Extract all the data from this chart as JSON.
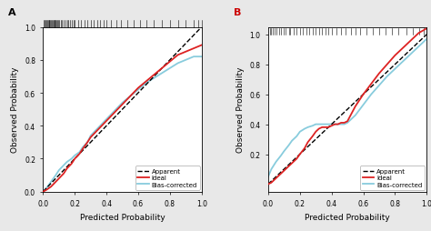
{
  "panel_A": {
    "label": "A",
    "label_color": "black",
    "apparent_x": [
      0.0,
      0.05,
      0.1,
      0.15,
      0.2,
      0.25,
      0.3,
      0.35,
      0.4,
      0.45,
      0.5,
      0.55,
      0.6,
      0.65,
      0.7,
      0.75,
      0.8,
      0.85,
      0.9,
      0.95,
      1.0
    ],
    "apparent_y": [
      0.0,
      0.05,
      0.1,
      0.15,
      0.2,
      0.25,
      0.3,
      0.35,
      0.4,
      0.45,
      0.5,
      0.55,
      0.6,
      0.65,
      0.7,
      0.75,
      0.8,
      0.85,
      0.9,
      0.95,
      1.0
    ],
    "ideal_x": [
      0.0,
      0.02,
      0.05,
      0.08,
      0.1,
      0.13,
      0.15,
      0.18,
      0.2,
      0.23,
      0.25,
      0.28,
      0.3,
      0.35,
      0.4,
      0.45,
      0.5,
      0.55,
      0.6,
      0.65,
      0.7,
      0.75,
      0.8,
      0.85,
      0.9,
      0.95,
      1.0
    ],
    "ideal_y": [
      0.0,
      0.01,
      0.03,
      0.06,
      0.08,
      0.11,
      0.14,
      0.17,
      0.2,
      0.23,
      0.26,
      0.3,
      0.33,
      0.38,
      0.43,
      0.48,
      0.53,
      0.58,
      0.63,
      0.67,
      0.71,
      0.75,
      0.79,
      0.83,
      0.85,
      0.87,
      0.89
    ],
    "bias_x": [
      0.0,
      0.02,
      0.05,
      0.08,
      0.1,
      0.13,
      0.15,
      0.18,
      0.2,
      0.23,
      0.25,
      0.28,
      0.3,
      0.35,
      0.4,
      0.45,
      0.5,
      0.55,
      0.6,
      0.65,
      0.7,
      0.75,
      0.8,
      0.85,
      0.9,
      0.95,
      1.0
    ],
    "bias_y": [
      0.0,
      0.02,
      0.06,
      0.1,
      0.13,
      0.16,
      0.18,
      0.2,
      0.22,
      0.24,
      0.27,
      0.3,
      0.34,
      0.39,
      0.44,
      0.49,
      0.54,
      0.58,
      0.62,
      0.66,
      0.69,
      0.72,
      0.75,
      0.78,
      0.8,
      0.82,
      0.82
    ],
    "rug_x": [
      0.005,
      0.01,
      0.015,
      0.02,
      0.025,
      0.03,
      0.035,
      0.04,
      0.045,
      0.05,
      0.055,
      0.06,
      0.065,
      0.07,
      0.075,
      0.08,
      0.085,
      0.09,
      0.095,
      0.1,
      0.11,
      0.12,
      0.13,
      0.14,
      0.15,
      0.16,
      0.17,
      0.18,
      0.19,
      0.2,
      0.22,
      0.24,
      0.26,
      0.28,
      0.3,
      0.32,
      0.34,
      0.36,
      0.38,
      0.4,
      0.43,
      0.46,
      0.49,
      0.53,
      0.57,
      0.61,
      0.65,
      0.7,
      0.75,
      0.8,
      0.85,
      0.9,
      0.95,
      0.98,
      1.0
    ]
  },
  "panel_B": {
    "label": "B",
    "label_color": "#cc0000",
    "apparent_x": [
      0.0,
      0.05,
      0.1,
      0.15,
      0.2,
      0.25,
      0.3,
      0.35,
      0.4,
      0.45,
      0.5,
      0.55,
      0.6,
      0.65,
      0.7,
      0.75,
      0.8,
      0.85,
      0.9,
      0.95,
      1.0
    ],
    "apparent_y": [
      0.0,
      0.05,
      0.1,
      0.15,
      0.2,
      0.25,
      0.3,
      0.35,
      0.4,
      0.45,
      0.5,
      0.55,
      0.6,
      0.65,
      0.7,
      0.75,
      0.8,
      0.85,
      0.9,
      0.95,
      1.0
    ],
    "ideal_x": [
      0.0,
      0.02,
      0.05,
      0.08,
      0.1,
      0.13,
      0.15,
      0.18,
      0.2,
      0.23,
      0.25,
      0.28,
      0.3,
      0.32,
      0.34,
      0.36,
      0.38,
      0.4,
      0.42,
      0.44,
      0.46,
      0.48,
      0.5,
      0.55,
      0.6,
      0.65,
      0.7,
      0.75,
      0.8,
      0.85,
      0.9,
      0.95,
      1.0
    ],
    "ideal_y": [
      0.0,
      0.01,
      0.04,
      0.07,
      0.09,
      0.12,
      0.14,
      0.17,
      0.2,
      0.24,
      0.28,
      0.32,
      0.35,
      0.37,
      0.38,
      0.38,
      0.38,
      0.39,
      0.4,
      0.4,
      0.41,
      0.41,
      0.42,
      0.52,
      0.6,
      0.67,
      0.74,
      0.8,
      0.86,
      0.91,
      0.96,
      1.01,
      1.04
    ],
    "bias_x": [
      0.0,
      0.02,
      0.05,
      0.08,
      0.1,
      0.13,
      0.15,
      0.18,
      0.2,
      0.23,
      0.25,
      0.28,
      0.3,
      0.32,
      0.34,
      0.36,
      0.38,
      0.4,
      0.42,
      0.44,
      0.46,
      0.48,
      0.5,
      0.55,
      0.6,
      0.65,
      0.7,
      0.75,
      0.8,
      0.85,
      0.9,
      0.95,
      1.0
    ],
    "bias_y": [
      0.05,
      0.1,
      0.15,
      0.19,
      0.22,
      0.26,
      0.29,
      0.32,
      0.35,
      0.37,
      0.38,
      0.39,
      0.4,
      0.4,
      0.4,
      0.4,
      0.4,
      0.4,
      0.4,
      0.4,
      0.4,
      0.4,
      0.41,
      0.46,
      0.53,
      0.6,
      0.66,
      0.72,
      0.77,
      0.82,
      0.87,
      0.92,
      0.97
    ],
    "rug_x": [
      0.01,
      0.02,
      0.03,
      0.04,
      0.05,
      0.07,
      0.08,
      0.1,
      0.11,
      0.13,
      0.14,
      0.16,
      0.18,
      0.2,
      0.22,
      0.24,
      0.26,
      0.28,
      0.3,
      0.32,
      0.34,
      0.36,
      0.38,
      0.4,
      0.43,
      0.46,
      0.49,
      0.52,
      0.55,
      0.58,
      0.62,
      0.66,
      0.7,
      0.74,
      0.78,
      0.82,
      0.87,
      0.91,
      0.95,
      0.98,
      1.0
    ]
  },
  "panel_A_ylim": [
    0.0,
    1.0
  ],
  "panel_B_ylim": [
    -0.05,
    1.05
  ],
  "apparent_color": "black",
  "ideal_color": "#dd2222",
  "bias_color": "#88ccdd",
  "apparent_lw": 1.0,
  "ideal_lw": 1.3,
  "bias_lw": 1.3,
  "xlabel": "Predicted Probability",
  "ylabel": "Observed Probability",
  "xlim": [
    0.0,
    1.0
  ],
  "xticks": [
    0.0,
    0.2,
    0.4,
    0.6,
    0.8,
    1.0
  ],
  "yticks_A": [
    0.0,
    0.2,
    0.4,
    0.6,
    0.8,
    1.0
  ],
  "yticks_B": [
    0.2,
    0.4,
    0.6,
    0.8,
    1.0
  ],
  "legend_labels": [
    "Apparent",
    "Ideal",
    "Bias-corrected"
  ],
  "bg_color": "#e8e8e8",
  "panel_bg": "white",
  "tick_fontsize": 5.5,
  "label_fontsize": 6.5
}
